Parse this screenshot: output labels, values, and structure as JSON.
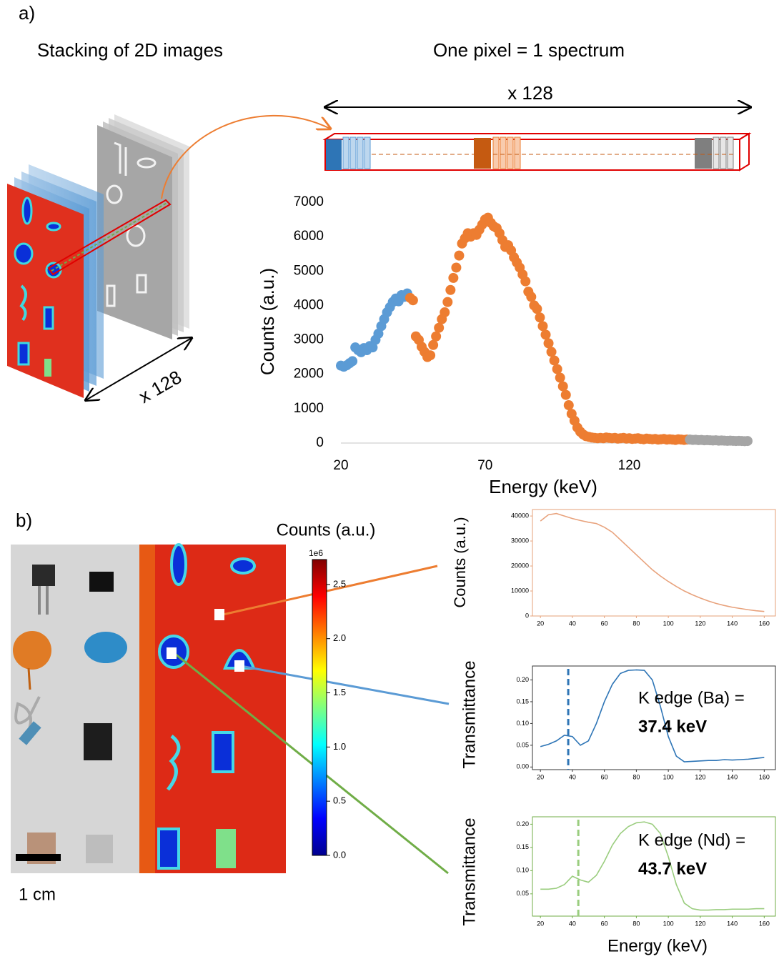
{
  "panel_a": {
    "label": "a)",
    "left_title": "Stacking of 2D images",
    "right_title": "One pixel = 1 spectrum",
    "stack_depth_label": "x 128",
    "channels_label": "x 128"
  },
  "panel_b": {
    "label": "b)",
    "scale_bar_label": "1 cm",
    "colorbar": {
      "title": "Counts (a.u.)",
      "offset_label": "1e6",
      "lim": [
        0,
        2.73
      ],
      "ticks": [
        {
          "value": 0,
          "label": "0.0"
        },
        {
          "value": 0.5,
          "label": "0.5"
        },
        {
          "value": 1,
          "label": "1.0"
        },
        {
          "value": 1.5,
          "label": "1.5"
        },
        {
          "value": 2,
          "label": "2.0"
        },
        {
          "value": 2.5,
          "label": "2.5"
        }
      ]
    }
  },
  "chart_data": [
    {
      "type": "scatter",
      "x_label": "Energy (keV)",
      "y_label": "Counts (a.u.)",
      "xlim": [
        20,
        162
      ],
      "ylim": [
        0,
        7000
      ],
      "xticks": [
        20,
        70,
        120
      ],
      "yticks": [
        0,
        1000,
        2000,
        3000,
        4000,
        5000,
        6000,
        7000
      ],
      "grid": false,
      "series": [
        {
          "color": "#5b9bd5",
          "x": [
            20,
            21,
            22,
            23,
            24,
            25,
            26,
            27,
            28,
            29,
            30,
            31,
            32,
            33,
            34,
            35,
            36,
            37,
            38,
            39,
            40,
            41,
            42,
            43
          ],
          "values": [
            2250,
            2220,
            2260,
            2320,
            2380,
            2780,
            2700,
            2640,
            2760,
            2700,
            2820,
            2780,
            3000,
            3180,
            3400,
            3600,
            3800,
            3950,
            4100,
            4200,
            4120,
            4300,
            4250,
            4350
          ]
        },
        {
          "color": "#ed7d31",
          "x": [
            44,
            45,
            46,
            47,
            48,
            49,
            50,
            51,
            52,
            53,
            54,
            55,
            56,
            57,
            58,
            59,
            60,
            61,
            62,
            63,
            64,
            65,
            66,
            67,
            68,
            69,
            70,
            71,
            72,
            73,
            74,
            75,
            76,
            77,
            78,
            79,
            80,
            81,
            82,
            83,
            84,
            85,
            86,
            87,
            88,
            89,
            90,
            91,
            92,
            93,
            94,
            95,
            96,
            97,
            98,
            99,
            100,
            101,
            102,
            103,
            104,
            105,
            106,
            107,
            108,
            109,
            110,
            111,
            112,
            113,
            114,
            115,
            116,
            117,
            118,
            119,
            120,
            121,
            122,
            123,
            124,
            125,
            126,
            127,
            128,
            129,
            130,
            131,
            132,
            133,
            134,
            135,
            136,
            137,
            138,
            139,
            140
          ],
          "values": [
            4220,
            4150,
            3100,
            3000,
            2800,
            2650,
            2500,
            2550,
            2850,
            3100,
            3350,
            3600,
            3800,
            4100,
            4450,
            4800,
            5100,
            5450,
            5800,
            5950,
            6100,
            6000,
            6100,
            6050,
            6200,
            6350,
            6500,
            6550,
            6400,
            6300,
            6250,
            6100,
            5900,
            5700,
            5750,
            5600,
            5400,
            5250,
            5100,
            4900,
            4700,
            4400,
            4250,
            4000,
            3900,
            3650,
            3400,
            3150,
            2900,
            2650,
            2400,
            2150,
            1900,
            1650,
            1400,
            1100,
            850,
            650,
            450,
            330,
            250,
            200,
            180,
            160,
            150,
            140,
            150,
            140,
            160,
            150,
            140,
            150,
            130,
            140,
            150,
            130,
            140,
            120,
            130,
            140,
            120,
            110,
            130,
            120,
            110,
            120,
            100,
            110,
            120,
            100,
            110,
            100,
            90,
            110,
            100,
            90,
            100
          ]
        },
        {
          "color": "#a5a5a5",
          "x": [
            141,
            142,
            143,
            144,
            145,
            146,
            147,
            148,
            149,
            150,
            151,
            152,
            153,
            154,
            155,
            156,
            157,
            158,
            159,
            160,
            161
          ],
          "values": [
            100,
            90,
            95,
            85,
            90,
            80,
            85,
            80,
            75,
            80,
            70,
            75,
            70,
            65,
            70,
            65,
            60,
            65,
            60,
            55,
            60
          ]
        }
      ]
    },
    {
      "type": "line",
      "y_label": "Counts (a.u.)",
      "xlim": [
        15,
        167
      ],
      "ylim": [
        0,
        42600
      ],
      "axis_color": "#e6a27a",
      "xticks": [
        20,
        40,
        60,
        80,
        100,
        120,
        140,
        160
      ],
      "yticks": [
        0,
        10000,
        20000,
        30000,
        40000
      ],
      "series": [
        {
          "color": "#e8a27c",
          "x": [
            20,
            25,
            30,
            35,
            40,
            45,
            50,
            55,
            60,
            65,
            70,
            75,
            80,
            85,
            90,
            95,
            100,
            105,
            110,
            115,
            120,
            125,
            130,
            135,
            140,
            145,
            150,
            155,
            160
          ],
          "values": [
            38000,
            40500,
            41000,
            40000,
            39000,
            38200,
            37500,
            37000,
            35500,
            33500,
            30500,
            27500,
            24500,
            21500,
            18500,
            16000,
            13800,
            11800,
            10000,
            8500,
            7200,
            6000,
            5000,
            4200,
            3500,
            3000,
            2500,
            2100,
            1800
          ]
        }
      ]
    },
    {
      "type": "line",
      "y_label": "Transmittance",
      "xlim": [
        15,
        167
      ],
      "ylim": [
        -0.006,
        0.232
      ],
      "axis_color": "#333333",
      "xticks": [
        20,
        40,
        60,
        80,
        100,
        120,
        140,
        160
      ],
      "yticks": [
        {
          "value": 0,
          "label": "0.00"
        },
        {
          "value": 0.05,
          "label": "0.05"
        },
        {
          "value": 0.1,
          "label": "0.10"
        },
        {
          "value": 0.15,
          "label": "0.15"
        },
        {
          "value": 0.2,
          "label": "0.20"
        }
      ],
      "k_edge": 37.4,
      "annotation": [
        "K edge (Ba) =",
        "37.4 keV"
      ],
      "series": [
        {
          "color": "#2e75b6",
          "x": [
            20,
            25,
            30,
            35,
            40,
            45,
            50,
            55,
            60,
            65,
            70,
            75,
            80,
            85,
            90,
            95,
            100,
            105,
            110,
            115,
            120,
            125,
            130,
            135,
            140,
            145,
            150,
            155,
            160
          ],
          "values": [
            0.047,
            0.052,
            0.06,
            0.073,
            0.07,
            0.05,
            0.06,
            0.1,
            0.15,
            0.19,
            0.215,
            0.222,
            0.223,
            0.222,
            0.2,
            0.14,
            0.07,
            0.025,
            0.012,
            0.013,
            0.014,
            0.015,
            0.015,
            0.017,
            0.016,
            0.017,
            0.018,
            0.02,
            0.022
          ]
        }
      ]
    },
    {
      "type": "line",
      "y_label": "Transmittance",
      "x_label": "Energy (keV)",
      "xlim": [
        15,
        167
      ],
      "ylim": [
        0.002,
        0.216
      ],
      "axis_color": "#70ad47",
      "xticks": [
        20,
        40,
        60,
        80,
        100,
        120,
        140,
        160
      ],
      "yticks": [
        {
          "value": 0.05,
          "label": "0.05"
        },
        {
          "value": 0.1,
          "label": "0.10"
        },
        {
          "value": 0.15,
          "label": "0.15"
        },
        {
          "value": 0.2,
          "label": "0.20"
        }
      ],
      "k_edge": 43.7,
      "annotation": [
        "K edge (Nd) =",
        "43.7 keV"
      ],
      "series": [
        {
          "color": "#9acd7e",
          "x": [
            20,
            25,
            30,
            35,
            40,
            45,
            50,
            55,
            60,
            65,
            70,
            75,
            80,
            85,
            90,
            95,
            100,
            105,
            110,
            115,
            120,
            125,
            130,
            135,
            140,
            145,
            150,
            155,
            160
          ],
          "values": [
            0.06,
            0.06,
            0.062,
            0.07,
            0.088,
            0.08,
            0.075,
            0.09,
            0.12,
            0.155,
            0.18,
            0.195,
            0.203,
            0.205,
            0.2,
            0.18,
            0.13,
            0.07,
            0.03,
            0.018,
            0.015,
            0.015,
            0.016,
            0.016,
            0.017,
            0.017,
            0.017,
            0.018,
            0.018
          ]
        }
      ]
    }
  ]
}
